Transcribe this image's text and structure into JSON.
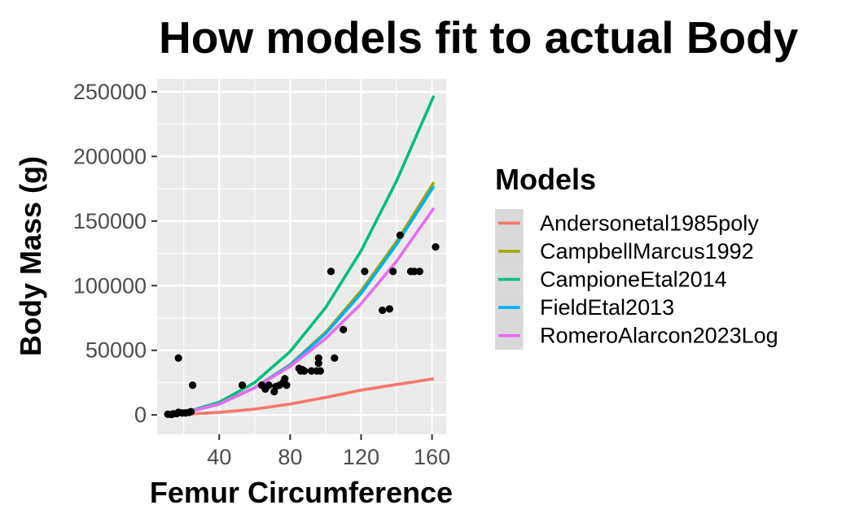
{
  "chart_data": {
    "type": "scatter",
    "title": "How models fit to actual Body",
    "xlabel": "Femur Circumference",
    "ylabel": "Body Mass (g)",
    "xlim": [
      5,
      168
    ],
    "ylim": [
      -15000,
      260000
    ],
    "x_ticks": [
      40,
      80,
      120,
      160
    ],
    "y_ticks": [
      0,
      50000,
      100000,
      150000,
      200000,
      250000
    ],
    "x_tick_labels": [
      "40",
      "80",
      "120",
      "160"
    ],
    "y_tick_labels": [
      "0",
      "50000",
      "100000",
      "150000",
      "200000",
      "250000"
    ],
    "grid": true,
    "legend": {
      "title": "Models",
      "position": "right"
    },
    "points": [
      {
        "x": 11,
        "y": 500
      },
      {
        "x": 13,
        "y": 300
      },
      {
        "x": 14,
        "y": 800
      },
      {
        "x": 16,
        "y": 1000
      },
      {
        "x": 17,
        "y": 2000
      },
      {
        "x": 17,
        "y": 44000
      },
      {
        "x": 19,
        "y": 1500
      },
      {
        "x": 21,
        "y": 1500
      },
      {
        "x": 23,
        "y": 2000
      },
      {
        "x": 25,
        "y": 23000
      },
      {
        "x": 24,
        "y": 2500
      },
      {
        "x": 53,
        "y": 23000
      },
      {
        "x": 64,
        "y": 23000
      },
      {
        "x": 66,
        "y": 20000
      },
      {
        "x": 68,
        "y": 23000
      },
      {
        "x": 71,
        "y": 18000
      },
      {
        "x": 72,
        "y": 22000
      },
      {
        "x": 74,
        "y": 23000
      },
      {
        "x": 76,
        "y": 25000
      },
      {
        "x": 77,
        "y": 28000
      },
      {
        "x": 78,
        "y": 23000
      },
      {
        "x": 85,
        "y": 36000
      },
      {
        "x": 86,
        "y": 34000
      },
      {
        "x": 87,
        "y": 35000
      },
      {
        "x": 88,
        "y": 34000
      },
      {
        "x": 92,
        "y": 34000
      },
      {
        "x": 95,
        "y": 34000
      },
      {
        "x": 96,
        "y": 40000
      },
      {
        "x": 96,
        "y": 44000
      },
      {
        "x": 97,
        "y": 34000
      },
      {
        "x": 103,
        "y": 111000
      },
      {
        "x": 105,
        "y": 44000
      },
      {
        "x": 110,
        "y": 66000
      },
      {
        "x": 122,
        "y": 111000
      },
      {
        "x": 132,
        "y": 81000
      },
      {
        "x": 136,
        "y": 82000
      },
      {
        "x": 138,
        "y": 111000
      },
      {
        "x": 142,
        "y": 139000
      },
      {
        "x": 148,
        "y": 111000
      },
      {
        "x": 150,
        "y": 111000
      },
      {
        "x": 153,
        "y": 111000
      },
      {
        "x": 162,
        "y": 130000
      }
    ],
    "series": [
      {
        "name": "Andersonetal1985poly",
        "color": "#F8766D",
        "x": [
          20,
          40,
          60,
          80,
          100,
          120,
          140,
          161
        ],
        "values": [
          400,
          1900,
          4500,
          8400,
          13500,
          19200,
          23500,
          28000
        ]
      },
      {
        "name": "CampbellMarcus1992",
        "color": "#A3A500",
        "x": [
          20,
          40,
          60,
          80,
          100,
          120,
          140,
          161
        ],
        "values": [
          1500,
          8500,
          21000,
          39000,
          64000,
          96000,
          134000,
          180000
        ]
      },
      {
        "name": "CampioneEtal2014",
        "color": "#00BF7D",
        "x": [
          20,
          40,
          60,
          80,
          100,
          120,
          140,
          161
        ],
        "values": [
          1700,
          9800,
          25000,
          49000,
          83000,
          127000,
          181000,
          247000
        ]
      },
      {
        "name": "FieldEtal2013",
        "color": "#00B0F6",
        "x": [
          20,
          40,
          60,
          80,
          100,
          120,
          140,
          161
        ],
        "values": [
          1500,
          8300,
          21000,
          38500,
          63000,
          94000,
          132000,
          177000
        ]
      },
      {
        "name": "RomeroAlarcon2023Log",
        "color": "#E76BF3",
        "x": [
          20,
          40,
          60,
          80,
          100,
          120,
          140,
          161
        ],
        "values": [
          1600,
          8500,
          21000,
          37500,
          59000,
          86000,
          119000,
          160000
        ]
      }
    ]
  }
}
